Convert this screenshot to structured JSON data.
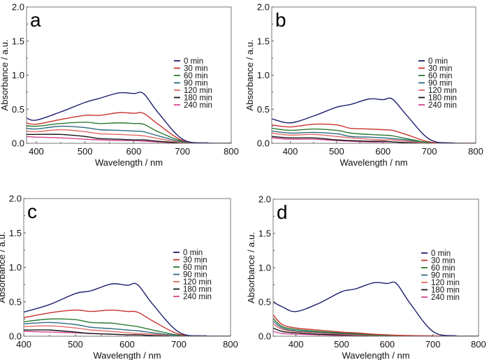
{
  "chart_data": [
    {
      "type": "line",
      "panel": "a",
      "title": "",
      "xlabel": "Wavelength / nm",
      "ylabel": "Absorbance / a.u.",
      "xlim": [
        380,
        800
      ],
      "ylim": [
        0,
        2.0
      ],
      "xticks": [
        400,
        500,
        600,
        700,
        800
      ],
      "yticks": [
        0.0,
        0.5,
        1.0,
        1.5,
        2.0
      ],
      "ytick_labels": [
        "0.0",
        "0.5",
        "1.0",
        "1.5",
        "2.0"
      ],
      "grid": false,
      "legend_position": "right",
      "x": [
        380,
        400,
        450,
        500,
        530,
        570,
        600,
        620,
        650,
        700,
        750,
        800
      ],
      "series": [
        {
          "name": "0 min",
          "color": "#1c1f6e",
          "values": [
            0.37,
            0.34,
            0.46,
            0.6,
            0.66,
            0.74,
            0.73,
            0.73,
            0.45,
            0.06,
            0.005,
            0.0
          ]
        },
        {
          "name": "30 min",
          "color": "#c8322c",
          "values": [
            0.3,
            0.28,
            0.35,
            0.41,
            0.41,
            0.45,
            0.44,
            0.44,
            0.28,
            0.04,
            0.003,
            0.0
          ]
        },
        {
          "name": "60 min",
          "color": "#2b7a30",
          "values": [
            0.26,
            0.25,
            0.29,
            0.31,
            0.29,
            0.3,
            0.29,
            0.28,
            0.17,
            0.03,
            0.002,
            0.0
          ]
        },
        {
          "name": "90 min",
          "color": "#2d6b82",
          "values": [
            0.22,
            0.21,
            0.25,
            0.23,
            0.2,
            0.19,
            0.18,
            0.17,
            0.11,
            0.02,
            0.001,
            0.0
          ]
        },
        {
          "name": "120 min",
          "color": "#e26a66",
          "values": [
            0.18,
            0.17,
            0.2,
            0.17,
            0.14,
            0.13,
            0.12,
            0.11,
            0.07,
            0.01,
            0.0,
            0.0
          ]
        },
        {
          "name": "180 min",
          "color": "#161616",
          "values": [
            0.13,
            0.13,
            0.13,
            0.1,
            0.07,
            0.06,
            0.05,
            0.05,
            0.03,
            0.005,
            0.0,
            0.0
          ]
        },
        {
          "name": "240 min",
          "color": "#d5438f",
          "values": [
            0.1,
            0.09,
            0.08,
            0.06,
            0.05,
            0.04,
            0.04,
            0.03,
            0.02,
            0.003,
            0.0,
            0.0
          ]
        }
      ]
    },
    {
      "type": "line",
      "panel": "b",
      "title": "",
      "xlabel": "Wavelength / nm",
      "ylabel": "Absorbance / a.u.",
      "xlim": [
        360,
        800
      ],
      "ylim": [
        0,
        2.0
      ],
      "xticks": [
        400,
        500,
        600,
        700,
        800
      ],
      "yticks": [
        0.0,
        0.5,
        1.0,
        1.5,
        2.0
      ],
      "ytick_labels": [
        "0.0",
        "0.5",
        "1.0",
        "1.5",
        "2.0"
      ],
      "grid": false,
      "legend_position": "right",
      "x": [
        360,
        400,
        450,
        500,
        530,
        570,
        600,
        620,
        650,
        700,
        750,
        800
      ],
      "series": [
        {
          "name": "0 min",
          "color": "#1c1f6e",
          "values": [
            0.36,
            0.3,
            0.4,
            0.53,
            0.57,
            0.65,
            0.64,
            0.65,
            0.42,
            0.06,
            0.005,
            0.0
          ]
        },
        {
          "name": "30 min",
          "color": "#c8322c",
          "values": [
            0.27,
            0.24,
            0.28,
            0.27,
            0.22,
            0.21,
            0.2,
            0.19,
            0.13,
            0.02,
            0.002,
            0.0
          ]
        },
        {
          "name": "60 min",
          "color": "#2b7a30",
          "values": [
            0.22,
            0.19,
            0.21,
            0.19,
            0.15,
            0.13,
            0.12,
            0.11,
            0.07,
            0.01,
            0.001,
            0.0
          ]
        },
        {
          "name": "90 min",
          "color": "#2d6b82",
          "values": [
            0.18,
            0.15,
            0.16,
            0.14,
            0.1,
            0.09,
            0.08,
            0.07,
            0.05,
            0.01,
            0.0,
            0.0
          ]
        },
        {
          "name": "120 min",
          "color": "#e26a66",
          "values": [
            0.15,
            0.12,
            0.13,
            0.1,
            0.08,
            0.06,
            0.05,
            0.05,
            0.03,
            0.005,
            0.0,
            0.0
          ]
        },
        {
          "name": "180 min",
          "color": "#161616",
          "values": [
            0.1,
            0.08,
            0.08,
            0.05,
            0.04,
            0.03,
            0.03,
            0.02,
            0.01,
            0.0,
            0.0,
            0.0
          ]
        },
        {
          "name": "240 min",
          "color": "#d5438f",
          "values": [
            0.08,
            0.06,
            0.06,
            0.04,
            0.03,
            0.02,
            0.02,
            0.02,
            0.01,
            0.0,
            0.0,
            0.0
          ]
        }
      ]
    },
    {
      "type": "line",
      "panel": "c",
      "title": "",
      "xlabel": "Wavelength / nm",
      "ylabel": "Absorbance / a.u.",
      "xlim": [
        400,
        800
      ],
      "ylim": [
        0,
        2.0
      ],
      "xticks": [
        400,
        500,
        600,
        700,
        800
      ],
      "yticks": [
        0.0,
        0.5,
        1.0,
        1.5,
        2.0
      ],
      "ytick_labels": [
        "0.0",
        "0.5",
        "1.0",
        "1.5",
        "2.0"
      ],
      "grid": false,
      "legend_position": "right",
      "x": [
        400,
        450,
        500,
        530,
        570,
        600,
        620,
        650,
        700,
        750,
        800
      ],
      "series": [
        {
          "name": "0 min",
          "color": "#1c1f6e",
          "values": [
            0.35,
            0.46,
            0.62,
            0.66,
            0.76,
            0.74,
            0.75,
            0.46,
            0.06,
            0.005,
            0.0
          ]
        },
        {
          "name": "30 min",
          "color": "#c8322c",
          "values": [
            0.27,
            0.34,
            0.38,
            0.36,
            0.38,
            0.36,
            0.35,
            0.22,
            0.03,
            0.002,
            0.0
          ]
        },
        {
          "name": "60 min",
          "color": "#2b7a30",
          "values": [
            0.21,
            0.25,
            0.24,
            0.2,
            0.19,
            0.16,
            0.14,
            0.09,
            0.015,
            0.0,
            0.0
          ]
        },
        {
          "name": "90 min",
          "color": "#2d6b82",
          "values": [
            0.18,
            0.2,
            0.17,
            0.13,
            0.11,
            0.09,
            0.08,
            0.05,
            0.008,
            0.0,
            0.0
          ]
        },
        {
          "name": "120 min",
          "color": "#e26a66",
          "values": [
            0.14,
            0.15,
            0.12,
            0.09,
            0.07,
            0.05,
            0.04,
            0.03,
            0.005,
            0.0,
            0.0
          ]
        },
        {
          "name": "180 min",
          "color": "#161616",
          "values": [
            0.09,
            0.09,
            0.06,
            0.04,
            0.03,
            0.02,
            0.02,
            0.01,
            0.0,
            0.0,
            0.0
          ]
        },
        {
          "name": "240 min",
          "color": "#d5438f",
          "values": [
            0.07,
            0.06,
            0.05,
            0.04,
            0.03,
            0.02,
            0.02,
            0.01,
            0.0,
            0.0,
            0.0
          ]
        }
      ]
    },
    {
      "type": "line",
      "panel": "d",
      "title": "",
      "xlabel": "Wavelength / nm",
      "ylabel": "Absorbance / a.u.",
      "xlim": [
        350,
        800
      ],
      "ylim": [
        0,
        2.0
      ],
      "xticks": [
        400,
        500,
        600,
        700,
        800
      ],
      "yticks": [
        0.0,
        0.5,
        1.0,
        1.5,
        2.0
      ],
      "ytick_labels": [
        "0.0",
        "0.5",
        "1.0",
        "1.5",
        "2.0"
      ],
      "grid": false,
      "legend_position": "right",
      "x": [
        350,
        370,
        400,
        450,
        500,
        530,
        570,
        600,
        620,
        650,
        700,
        750,
        800
      ],
      "series": [
        {
          "name": "0 min",
          "color": "#1c1f6e",
          "values": [
            0.5,
            0.43,
            0.36,
            0.48,
            0.65,
            0.69,
            0.78,
            0.77,
            0.77,
            0.48,
            0.07,
            0.005,
            0.0
          ]
        },
        {
          "name": "30 min",
          "color": "#c8322c",
          "values": [
            0.31,
            0.17,
            0.12,
            0.09,
            0.06,
            0.05,
            0.03,
            0.02,
            0.015,
            0.01,
            0.005,
            0.0,
            0.0
          ]
        },
        {
          "name": "60 min",
          "color": "#2b7a30",
          "values": [
            0.26,
            0.14,
            0.1,
            0.07,
            0.05,
            0.04,
            0.02,
            0.015,
            0.01,
            0.005,
            0.0,
            0.0,
            0.0
          ]
        },
        {
          "name": "90 min",
          "color": "#2d6b82",
          "values": [
            0.22,
            0.12,
            0.08,
            0.06,
            0.04,
            0.03,
            0.02,
            0.01,
            0.01,
            0.005,
            0.0,
            0.0,
            0.0
          ]
        },
        {
          "name": "120 min",
          "color": "#e26a66",
          "values": [
            0.18,
            0.1,
            0.07,
            0.05,
            0.03,
            0.02,
            0.015,
            0.01,
            0.01,
            0.005,
            0.0,
            0.0,
            0.0
          ]
        },
        {
          "name": "180 min",
          "color": "#161616",
          "values": [
            0.12,
            0.07,
            0.05,
            0.03,
            0.02,
            0.015,
            0.01,
            0.005,
            0.005,
            0.0,
            0.0,
            0.0,
            0.0
          ]
        },
        {
          "name": "240 min",
          "color": "#d5438f",
          "values": [
            0.07,
            0.04,
            0.03,
            0.02,
            0.01,
            0.01,
            0.005,
            0.0,
            0.0,
            0.0,
            0.0,
            0.0,
            0.0
          ]
        }
      ]
    }
  ]
}
